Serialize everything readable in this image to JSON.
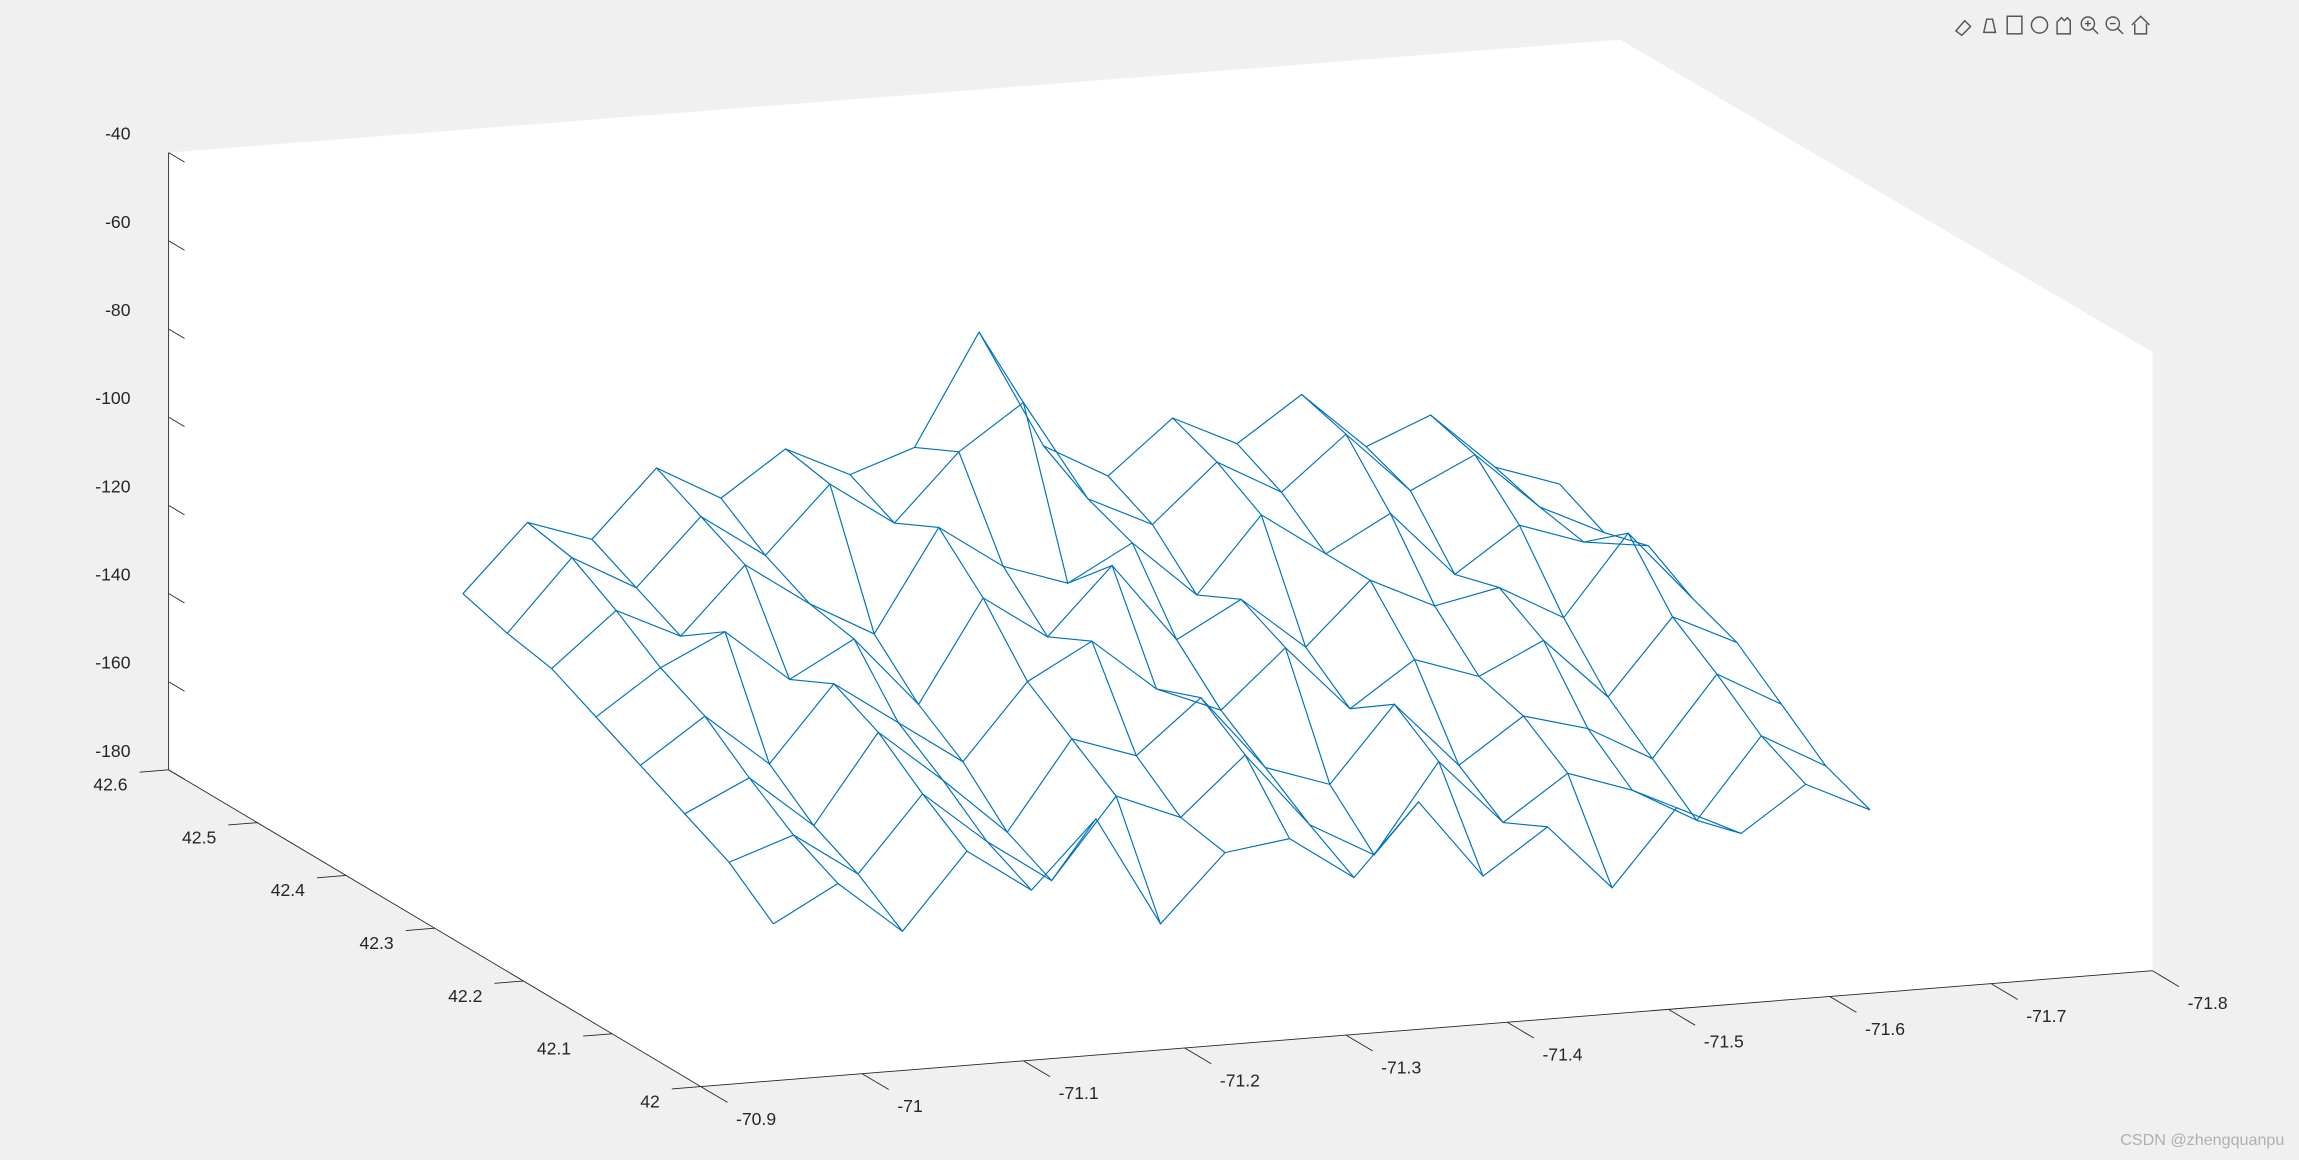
{
  "chart_data": {
    "type": "mesh3d",
    "x": [
      -71,
      -71.04,
      -71.08,
      -71.12,
      -71.16,
      -71.2,
      -71.24,
      -71.28,
      -71.32,
      -71.36,
      -71.4,
      -71.44,
      -71.48,
      -71.52,
      -71.56,
      -71.6,
      -71.64,
      -71.68
    ],
    "series": [
      {
        "y": 42.1,
        "values": [
          -158,
          -150,
          -162,
          -145,
          -155,
          -140,
          -165,
          -150,
          -148,
          -158,
          -142,
          -160,
          -150,
          -165,
          -148,
          -155,
          -145,
          -152
        ]
      },
      {
        "y": 42.15,
        "values": [
          -150,
          -145,
          -155,
          -138,
          -150,
          -160,
          -142,
          -148,
          -135,
          -152,
          -160,
          -140,
          -155,
          -145,
          -150,
          -158,
          -140,
          -148
        ]
      },
      {
        "y": 42.2,
        "values": [
          -145,
          -138,
          -150,
          -130,
          -142,
          -155,
          -135,
          -140,
          -128,
          -145,
          -150,
          -133,
          -148,
          -138,
          -142,
          -150,
          -132,
          -140
        ]
      },
      {
        "y": 42.25,
        "values": [
          -140,
          -130,
          -142,
          -125,
          -135,
          -145,
          -128,
          -120,
          -132,
          -138,
          -125,
          -140,
          -130,
          -135,
          -128,
          -142,
          -125,
          -132
        ]
      },
      {
        "y": 42.3,
        "values": [
          -135,
          -125,
          -118,
          -130,
          -122,
          -138,
          -115,
          -125,
          -110,
          -128,
          -120,
          -132,
          -118,
          -125,
          -122,
          -130,
          -112,
          -128
        ]
      },
      {
        "y": 42.35,
        "values": [
          -130,
          -118,
          -125,
          -110,
          -120,
          -128,
          -105,
          -115,
          -120,
          -112,
          -125,
          -108,
          -118,
          -110,
          -125,
          -115,
          -120,
          -122
        ]
      },
      {
        "y": 42.4,
        "values": [
          -128,
          -112,
          -120,
          -105,
          -115,
          -100,
          -110,
          -95,
          -85,
          -108,
          -115,
          -102,
          -110,
          -98,
          -112,
          -105,
          -118,
          -125
        ]
      },
      {
        "y": 42.45,
        "values": [
          -125,
          -110,
          -115,
          -100,
          -108,
          -98,
          -105,
          -100,
          -75,
          -102,
          -110,
          -98,
          -105,
          -95,
          -108,
          -102,
          -115,
          -120
        ]
      }
    ],
    "color": "#0072bd",
    "xlim": [
      -70.9,
      -71.8
    ],
    "xticks": [
      -70.9,
      -71,
      -71.1,
      -71.2,
      -71.3,
      -71.4,
      -71.5,
      -71.6,
      -71.7,
      -71.8
    ],
    "ylim": [
      42,
      42.6
    ],
    "yticks": [
      42,
      42.1,
      42.2,
      42.3,
      42.4,
      42.5,
      42.6
    ],
    "zlim": [
      -180,
      -40
    ],
    "zticks": [
      -180,
      -160,
      -140,
      -120,
      -100,
      -80,
      -60,
      -40
    ]
  },
  "watermark": "CSDN @zhengquanpu"
}
